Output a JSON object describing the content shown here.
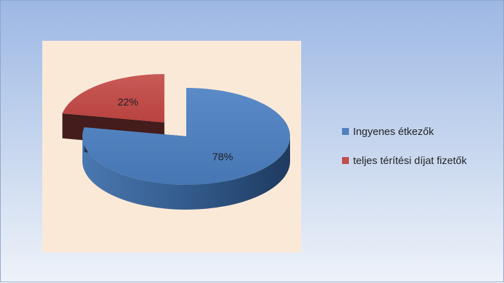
{
  "chart_data": {
    "type": "pie",
    "three_d": true,
    "legend_position": "right",
    "slices": [
      {
        "label": "Ingyenes étkezők",
        "value": 78,
        "display": "78%",
        "color": "#4f81bd",
        "exploded": false
      },
      {
        "label": "teljes térítési díjat fizetők",
        "value": 22,
        "display": "22%",
        "color": "#c0504d",
        "exploded": true
      }
    ]
  }
}
